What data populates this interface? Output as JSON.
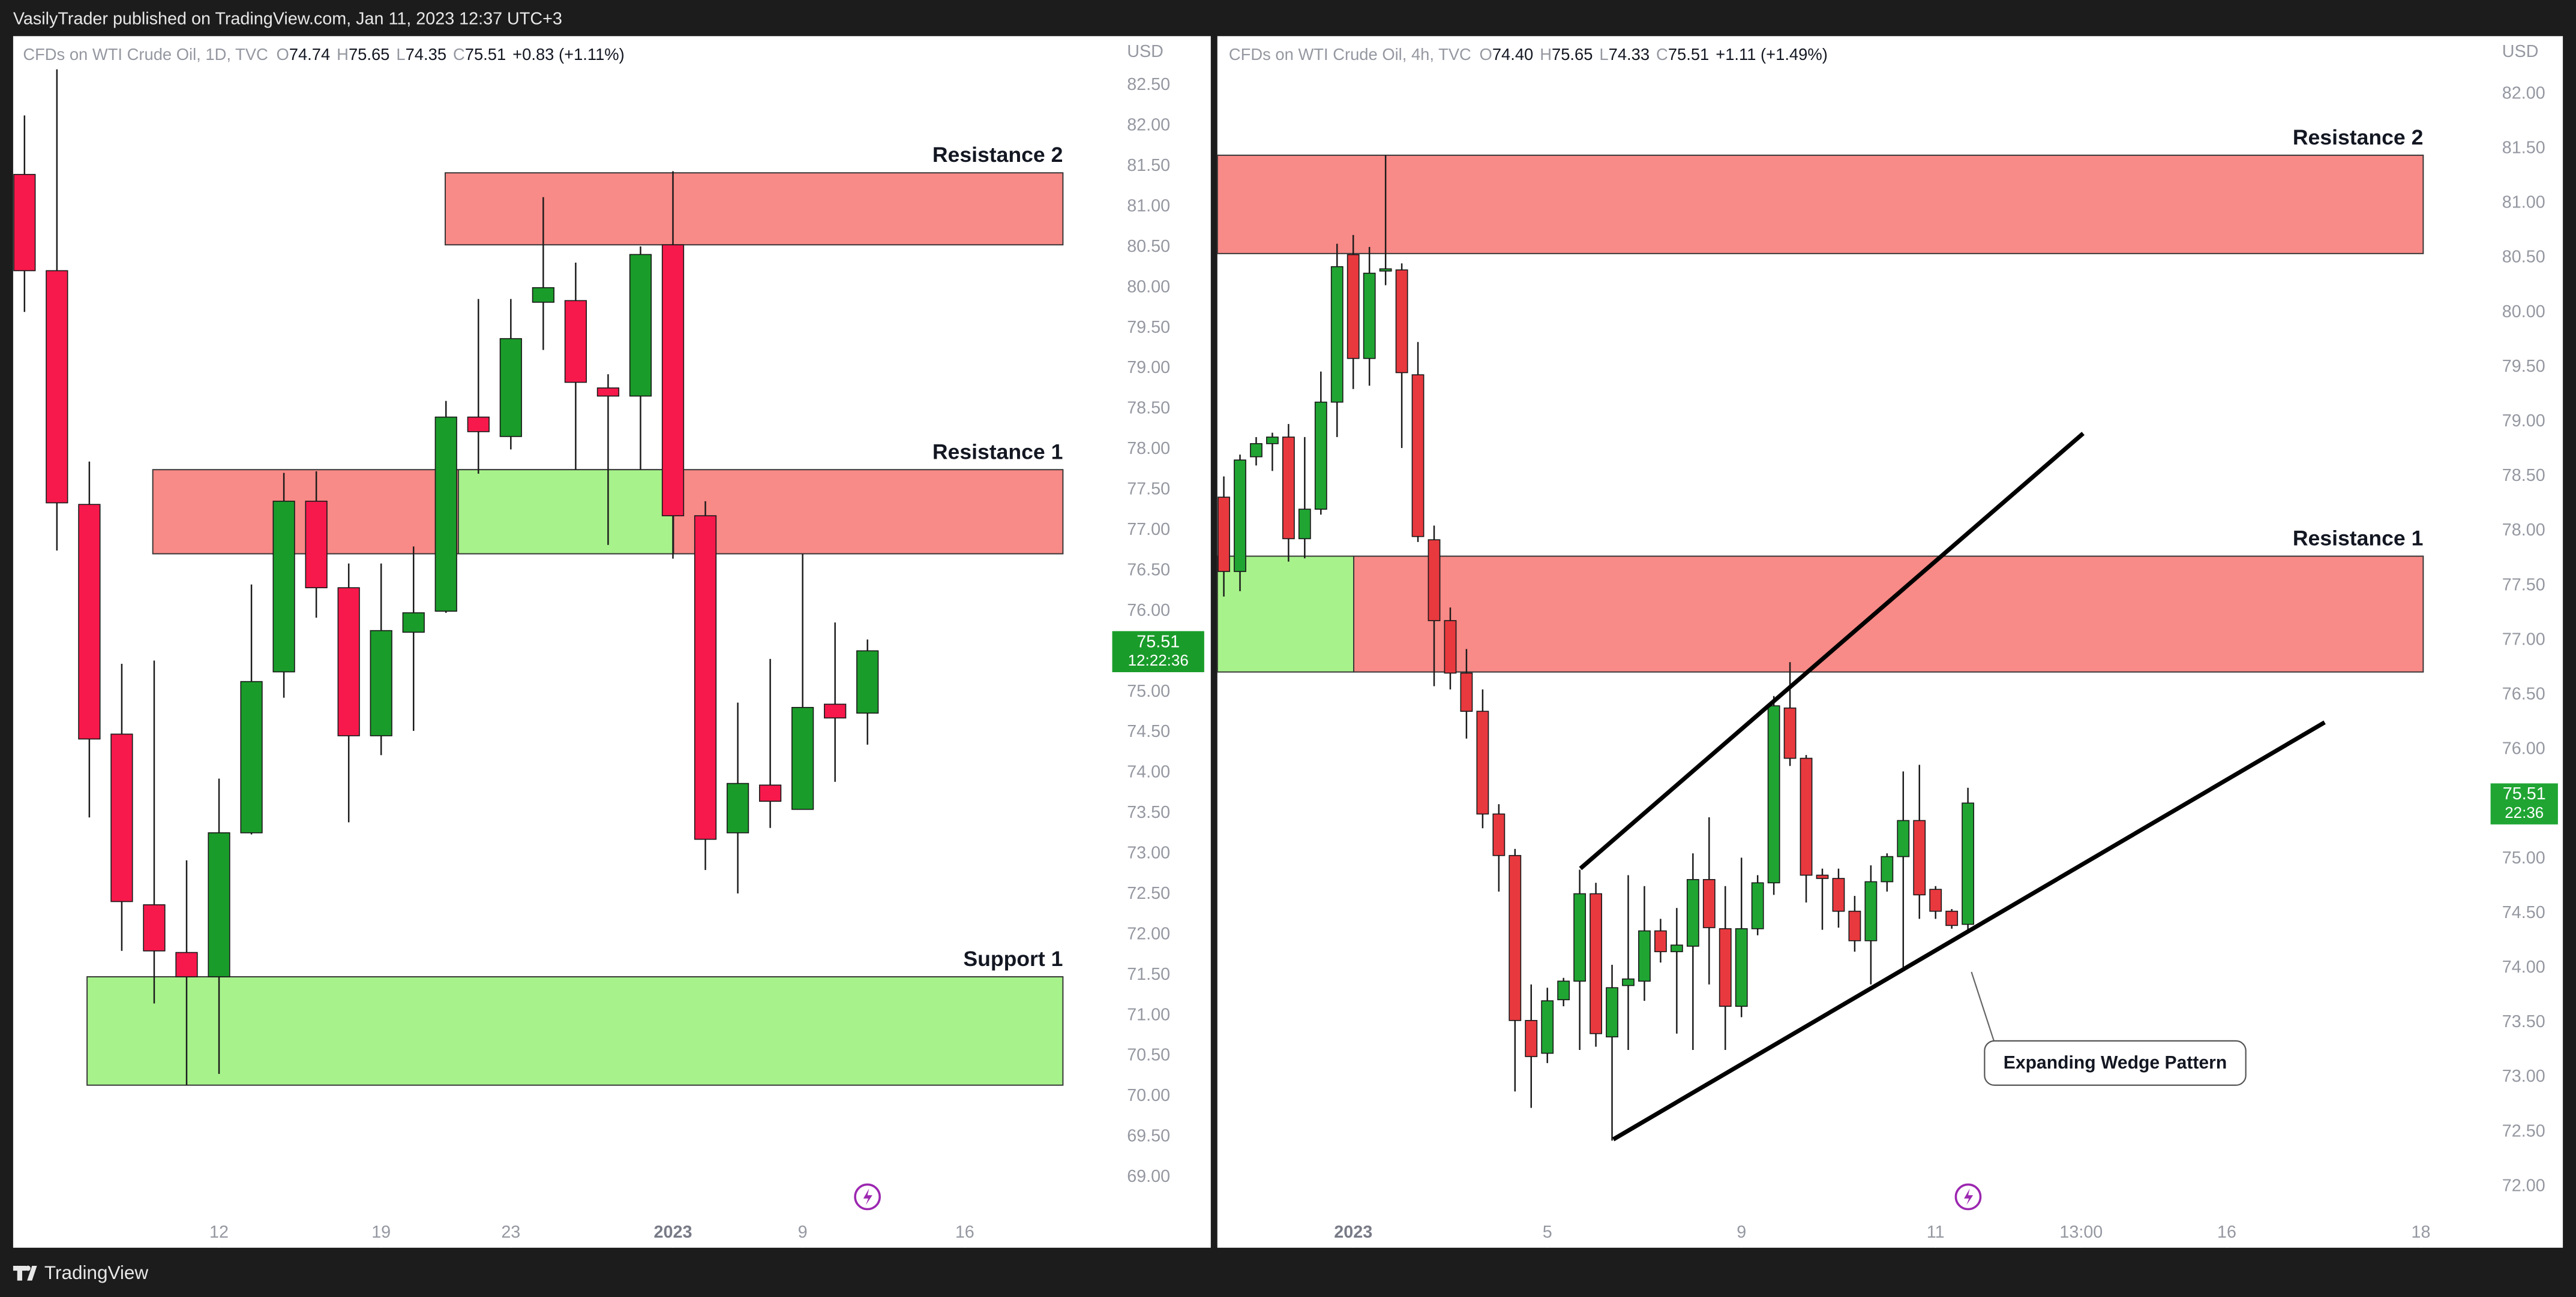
{
  "page": {
    "publisher": "VasilyTrader published on TradingView.com, Jan 11, 2023 12:37 UTC+3",
    "brand": "TradingView"
  },
  "chart_data": [
    {
      "type": "candlestick",
      "symbol": "CFDs on WTI Crude Oil, 1D, TVC",
      "legend": [
        {
          "key": "O",
          "value": "74.74"
        },
        {
          "key": "H",
          "value": "75.65"
        },
        {
          "key": "L",
          "value": "74.35"
        },
        {
          "key": "C",
          "value": "75.51"
        }
      ],
      "change": "+0.83 (+1.11%)",
      "countdown": "12:22:36",
      "currency": "USD",
      "up_color": "#1a9c2a",
      "down_color": "#f7194b",
      "open": [
        81.4,
        80.21,
        77.32,
        74.48,
        72.37,
        71.78,
        71.48,
        73.26,
        75.25,
        77.36,
        76.29,
        74.46,
        75.74,
        76.0,
        78.4,
        78.16,
        79.82,
        79.84,
        78.76,
        78.66,
        80.53,
        77.18,
        73.26,
        73.85,
        73.55,
        74.85,
        74.74
      ],
      "high": [
        82.13,
        82.7,
        77.85,
        75.35,
        75.39,
        72.92,
        73.93,
        76.33,
        77.71,
        77.73,
        76.59,
        76.59,
        76.8,
        78.6,
        79.86,
        79.86,
        81.12,
        80.31,
        78.93,
        80.51,
        81.44,
        77.36,
        74.87,
        75.41,
        76.71,
        75.86,
        75.65
      ],
      "low": [
        79.7,
        76.75,
        73.45,
        71.8,
        71.15,
        70.14,
        70.28,
        73.24,
        74.93,
        75.92,
        73.39,
        74.22,
        74.52,
        75.98,
        77.7,
        78.0,
        79.23,
        77.75,
        76.82,
        77.75,
        76.65,
        72.8,
        72.51,
        73.32,
        73.55,
        73.89,
        74.35
      ],
      "close": [
        80.21,
        77.34,
        74.42,
        72.41,
        71.8,
        71.48,
        73.26,
        75.13,
        77.36,
        76.29,
        74.46,
        75.76,
        75.98,
        78.4,
        78.22,
        79.37,
        80.0,
        78.83,
        78.66,
        80.41,
        77.18,
        73.18,
        73.87,
        73.65,
        74.81,
        74.68,
        75.51
      ],
      "zones": [
        {
          "label": "Resistance 2",
          "top": 81.42,
          "bottom": 80.53,
          "color": "#f88a87"
        },
        {
          "label": "Resistance 1",
          "top": 77.75,
          "bottom": 76.71,
          "color": "#f88a87"
        },
        {
          "top": 77.75,
          "bottom": 76.71,
          "color": "#a7f28b"
        },
        {
          "label": "Support 1",
          "top": 71.48,
          "bottom": 70.14,
          "color": "#a7f28b"
        }
      ],
      "xlim": [
        -0.35,
        33.7
      ],
      "ylim": [
        68.13,
        83.11
      ],
      "xticks": [
        {
          "value": 6,
          "label": "12"
        },
        {
          "value": 11,
          "label": "19"
        },
        {
          "value": 15,
          "label": "23"
        },
        {
          "value": 20,
          "label": "2023"
        },
        {
          "value": 24,
          "label": "9"
        },
        {
          "value": 29,
          "label": "16"
        }
      ],
      "yticks": [
        {
          "value": 69,
          "label": "69.00"
        },
        {
          "value": 69.5,
          "label": "69.50"
        },
        {
          "value": 70,
          "label": "70.00"
        },
        {
          "value": 70.5,
          "label": "70.50"
        },
        {
          "value": 71,
          "label": "71.00"
        },
        {
          "value": 71.5,
          "label": "71.50"
        },
        {
          "value": 72,
          "label": "72.00"
        },
        {
          "value": 72.5,
          "label": "72.50"
        },
        {
          "value": 73,
          "label": "73.00"
        },
        {
          "value": 73.5,
          "label": "73.50"
        },
        {
          "value": 74,
          "label": "74.00"
        },
        {
          "value": 74.5,
          "label": "74.50"
        },
        {
          "value": 75,
          "label": "75.00"
        },
        {
          "value": 75.5,
          "label": "75.50"
        },
        {
          "value": 76,
          "label": "76.00"
        },
        {
          "value": 76.5,
          "label": "76.50"
        },
        {
          "value": 77,
          "label": "77.00"
        },
        {
          "value": 77.5,
          "label": "77.50"
        },
        {
          "value": 78,
          "label": "78.00"
        },
        {
          "value": 78.5,
          "label": "78.50"
        },
        {
          "value": 79,
          "label": "79.00"
        },
        {
          "value": 79.5,
          "label": "79.50"
        },
        {
          "value": 80,
          "label": "80.00"
        },
        {
          "value": 80.5,
          "label": "80.50"
        },
        {
          "value": 81,
          "label": "81.00"
        },
        {
          "value": 81.5,
          "label": "81.50"
        },
        {
          "value": 82,
          "label": "82.00"
        },
        {
          "value": 82.5,
          "label": "82.50"
        }
      ]
    },
    {
      "type": "candlestick",
      "symbol": "CFDs on WTI Crude Oil, 4h, TVC",
      "legend": [
        {
          "key": "O",
          "value": "74.40"
        },
        {
          "key": "H",
          "value": "75.65"
        },
        {
          "key": "L",
          "value": "74.33"
        },
        {
          "key": "C",
          "value": "75.51"
        }
      ],
      "change": "+1.11 (+1.49%)",
      "countdown": "22:36",
      "currency": "USD",
      "up_color": "#20a533",
      "down_color": "#e8393f",
      "annotation": "Expanding Wedge Pattern",
      "open": [
        78.31,
        77.63,
        78.68,
        78.8,
        78.86,
        77.93,
        78.2,
        79.18,
        80.53,
        79.58,
        80.38,
        80.39,
        79.43,
        77.92,
        77.18,
        76.7,
        76.35,
        75.41,
        75.03,
        73.52,
        73.22,
        73.71,
        73.88,
        74.68,
        73.37,
        73.84,
        73.88,
        74.34,
        74.15,
        74.2,
        74.81,
        74.36,
        73.65,
        74.36,
        74.78,
        76.38,
        75.92,
        74.85,
        74.82,
        74.52,
        74.25,
        74.79,
        75.02,
        75.35,
        74.72,
        74.52,
        74.4
      ],
      "high": [
        78.5,
        78.7,
        78.86,
        78.9,
        78.98,
        78.86,
        79.46,
        80.63,
        80.71,
        80.6,
        81.44,
        80.45,
        79.73,
        78.05,
        77.3,
        76.92,
        76.55,
        75.5,
        75.09,
        73.85,
        73.82,
        73.91,
        74.9,
        74.78,
        74.03,
        74.85,
        74.75,
        74.45,
        74.55,
        75.05,
        75.38,
        74.75,
        75.01,
        74.85,
        76.49,
        76.8,
        75.95,
        74.91,
        74.91,
        74.66,
        74.94,
        75.05,
        75.8,
        75.86,
        74.75,
        74.54,
        75.65
      ],
      "low": [
        77.4,
        77.45,
        78.6,
        78.55,
        77.72,
        77.75,
        78.15,
        78.86,
        79.3,
        79.33,
        80.25,
        78.76,
        77.9,
        76.58,
        76.55,
        76.1,
        75.28,
        74.7,
        72.87,
        72.72,
        73.13,
        73.65,
        73.25,
        73.28,
        72.42,
        73.25,
        73.7,
        74.05,
        73.4,
        73.25,
        73.85,
        73.25,
        73.55,
        74.3,
        74.67,
        75.85,
        74.6,
        74.35,
        74.37,
        74.15,
        73.85,
        74.7,
        74.0,
        74.45,
        74.45,
        74.36,
        74.33
      ],
      "close": [
        77.63,
        78.65,
        78.8,
        78.86,
        77.93,
        78.2,
        79.18,
        80.42,
        79.58,
        80.36,
        80.4,
        79.45,
        77.95,
        77.18,
        76.7,
        76.35,
        75.41,
        75.03,
        73.52,
        73.19,
        73.7,
        73.88,
        74.68,
        73.4,
        73.82,
        73.9,
        74.34,
        74.15,
        74.21,
        74.81,
        74.37,
        73.65,
        74.36,
        74.78,
        76.4,
        75.92,
        74.85,
        74.82,
        74.52,
        74.25,
        74.79,
        75.02,
        75.35,
        74.67,
        74.52,
        74.39,
        75.51
      ],
      "zones": [
        {
          "label": "Resistance 2",
          "top": 81.44,
          "bottom": 80.54,
          "color": "#f88a87"
        },
        {
          "label": "Resistance 1",
          "top": 77.77,
          "bottom": 76.71,
          "color": "#f88a87"
        },
        {
          "top": 77.77,
          "bottom": 76.71,
          "color": "#a7f28b"
        }
      ],
      "xlim": [
        -0.4,
        77.7
      ],
      "ylim": [
        71.44,
        82.53
      ],
      "xticks": [
        {
          "value": 8,
          "label": "2023"
        },
        {
          "value": 20,
          "label": "5"
        },
        {
          "value": 32,
          "label": "9"
        },
        {
          "value": 44,
          "label": "11"
        },
        {
          "value": 53,
          "label": "13:00"
        },
        {
          "value": 62,
          "label": "16"
        },
        {
          "value": 74,
          "label": "18"
        }
      ],
      "yticks": [
        {
          "value": 72,
          "label": "72.00"
        },
        {
          "value": 72.5,
          "label": "72.50"
        },
        {
          "value": 73,
          "label": "73.00"
        },
        {
          "value": 73.5,
          "label": "73.50"
        },
        {
          "value": 74,
          "label": "74.00"
        },
        {
          "value": 74.5,
          "label": "74.50"
        },
        {
          "value": 75,
          "label": "75.00"
        },
        {
          "value": 75.5,
          "label": "75.50"
        },
        {
          "value": 76,
          "label": "76.00"
        },
        {
          "value": 76.5,
          "label": "76.50"
        },
        {
          "value": 77,
          "label": "77.00"
        },
        {
          "value": 77.5,
          "label": "77.50"
        },
        {
          "value": 78,
          "label": "78.00"
        },
        {
          "value": 78.5,
          "label": "78.50"
        },
        {
          "value": 79,
          "label": "79.00"
        },
        {
          "value": 79.5,
          "label": "79.50"
        },
        {
          "value": 80,
          "label": "80.00"
        },
        {
          "value": 80.5,
          "label": "80.50"
        },
        {
          "value": 81,
          "label": "81.00"
        },
        {
          "value": 81.5,
          "label": "81.50"
        },
        {
          "value": 82,
          "label": "82.00"
        }
      ]
    }
  ]
}
